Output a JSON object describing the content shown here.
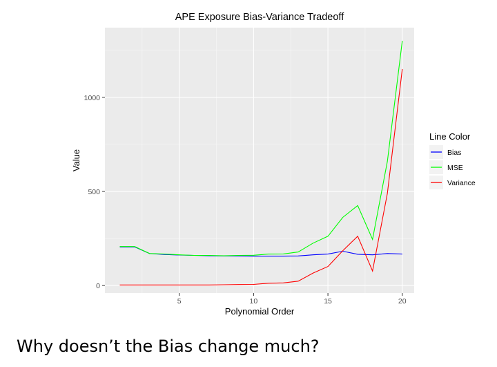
{
  "question": "Why doesn’t the Bias change much?",
  "chart_data": {
    "type": "line",
    "title": "APE Exposure Bias-Variance Tradeoff",
    "xlabel": "Polynomial Order",
    "ylabel": "Value",
    "xlim": [
      0,
      20.8
    ],
    "ylim": [
      -40,
      1370
    ],
    "x_ticks": [
      5,
      10,
      15,
      20
    ],
    "y_ticks": [
      0,
      500,
      1000
    ],
    "x_tick_labels": [
      "5",
      "10",
      "15",
      "20"
    ],
    "y_tick_labels": [
      "0",
      "500",
      "1000"
    ],
    "legend_title": "Line Color",
    "legend_position": "right",
    "grid": true,
    "x": [
      1,
      2,
      3,
      4,
      5,
      6,
      7,
      8,
      9,
      10,
      11,
      12,
      13,
      14,
      15,
      16,
      17,
      18,
      19,
      20
    ],
    "series": [
      {
        "name": "Bias",
        "color": "#0000ff",
        "values": [
          205,
          205,
          170,
          165,
          162,
          160,
          158,
          157,
          157,
          156,
          156,
          156,
          157,
          163,
          167,
          182,
          166,
          163,
          170,
          167
        ]
      },
      {
        "name": "MSE",
        "color": "#00ff00",
        "values": [
          207,
          207,
          170,
          167,
          163,
          160,
          160,
          158,
          160,
          161,
          167,
          168,
          178,
          225,
          262,
          362,
          425,
          245,
          660,
          1300
        ]
      },
      {
        "name": "Variance",
        "color": "#ff0000",
        "values": [
          3,
          3,
          3,
          3,
          3,
          3,
          3,
          4,
          5,
          6,
          12,
          14,
          23,
          66,
          101,
          185,
          262,
          77,
          490,
          1150
        ]
      }
    ]
  }
}
